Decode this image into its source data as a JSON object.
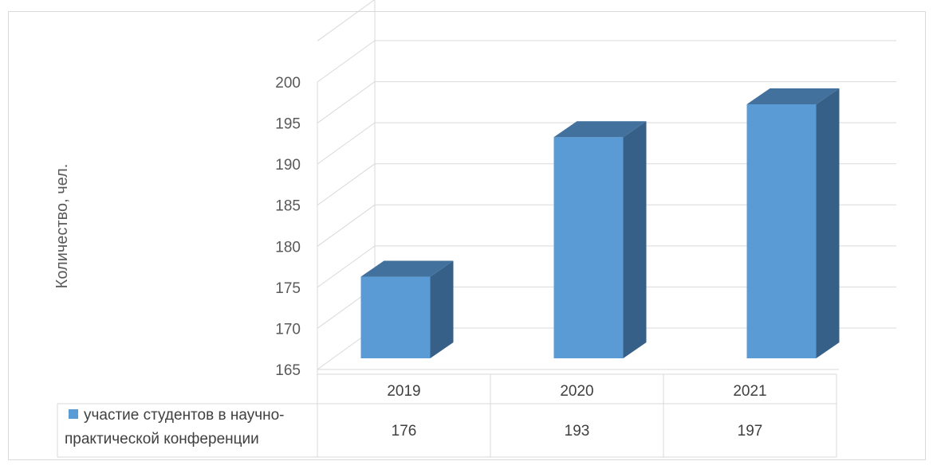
{
  "chart_data": {
    "type": "bar",
    "style": "3d-column",
    "categories": [
      "2019",
      "2020",
      "2021"
    ],
    "series": [
      {
        "name": "участие студентов в научно-практической конференции",
        "name_lines": [
          "участие студентов в научно-",
          "практической конференции"
        ],
        "values": [
          176,
          193,
          197
        ]
      }
    ],
    "ylabel": "Количество, чел.",
    "ylim": [
      165,
      200
    ],
    "y_ticks": [
      165,
      170,
      175,
      180,
      185,
      190,
      195,
      200
    ],
    "grid": true,
    "legend": "data-table-below",
    "colors": {
      "front": "#5b9bd5",
      "side": "#376089",
      "top": "#41719c",
      "grid": "#d9d9d9",
      "text": "#595959"
    }
  }
}
